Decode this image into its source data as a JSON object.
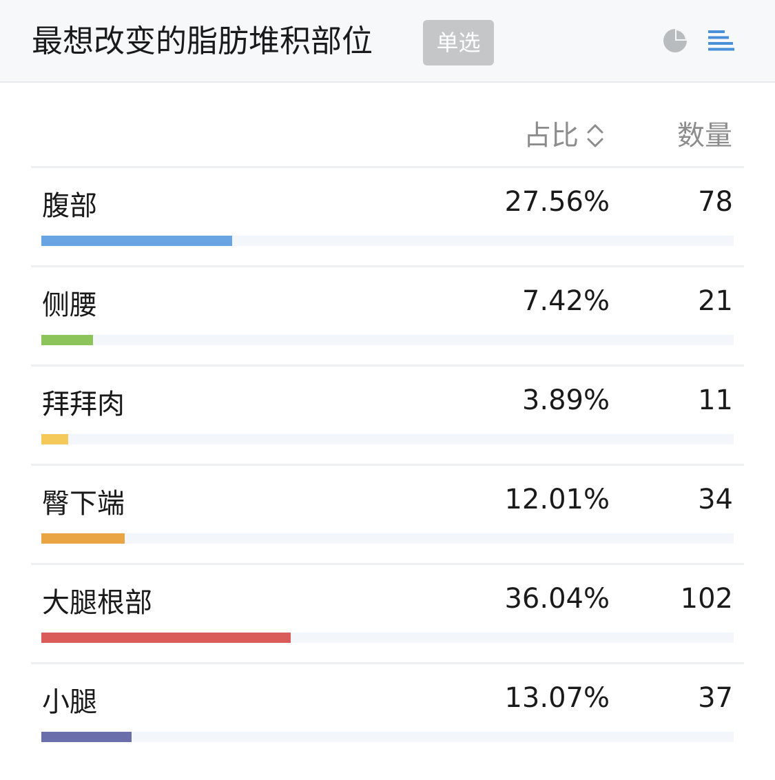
{
  "header": {
    "title": "最想改变的脂肪堆积部位",
    "badge": "单选",
    "pie_icon": "pie-chart-icon",
    "bar_icon": "bar-list-icon",
    "active_icon_color": "#4a90d9",
    "inactive_icon_color": "#b9bcbf"
  },
  "columns": {
    "ratio": "占比",
    "count": "数量",
    "sort_icon": "sort-icon"
  },
  "rows": [
    {
      "label": "腹部",
      "percent": "27.56%",
      "count": "78",
      "fraction": 0.2756,
      "color": "#6aa5e3"
    },
    {
      "label": "侧腰",
      "percent": "7.42%",
      "count": "21",
      "fraction": 0.0742,
      "color": "#8cc45a"
    },
    {
      "label": "拜拜肉",
      "percent": "3.89%",
      "count": "11",
      "fraction": 0.0389,
      "color": "#f5c85a"
    },
    {
      "label": "臀下端",
      "percent": "12.01%",
      "count": "34",
      "fraction": 0.1201,
      "color": "#e9a444"
    },
    {
      "label": "大腿根部",
      "percent": "36.04%",
      "count": "102",
      "fraction": 0.3604,
      "color": "#d95c5a"
    },
    {
      "label": "小腿",
      "percent": "13.07%",
      "count": "37",
      "fraction": 0.1307,
      "color": "#6a6eaa"
    }
  ]
}
